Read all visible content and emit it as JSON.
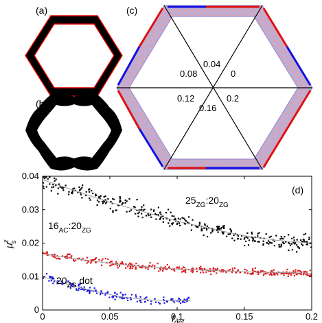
{
  "panels": {
    "a": {
      "label": "(a)"
    },
    "b": {
      "label": "(b)"
    },
    "c": {
      "label": "(c)",
      "sector_labels": [
        "0.04",
        "0",
        "0.2",
        "0.16",
        "0.12",
        "0.08"
      ]
    },
    "d": {
      "label": "(d)"
    }
  },
  "colors": {
    "ring_fill": "#000000",
    "ring_outline": "#e00000",
    "flake_fill": "#b8b0dc",
    "edge_red": "#e01010",
    "edge_blue": "#1010e0",
    "series_black": "#000000",
    "series_red": "#e01a1a",
    "series_blue": "#1a1ae0"
  },
  "chart_data": {
    "type": "scatter",
    "xlabel": "f",
    "xlabel_sub": "def",
    "ylabel": "μ",
    "ylabel_sup": "z",
    "ylabel_sub": "s",
    "xlim": [
      0,
      0.2
    ],
    "ylim": [
      0,
      0.04
    ],
    "xticks": [
      "0",
      "0.05",
      "0.1",
      "0.15",
      "0.2"
    ],
    "yticks": [
      "0",
      "0.01",
      "0.02",
      "0.03",
      "0.04"
    ],
    "series": [
      {
        "name_main": "25",
        "name_sub1": "ZG",
        "name_mid": ":20",
        "name_sub2": "ZG",
        "color": "#000000",
        "x_range": [
          0,
          0.2
        ],
        "fit": [
          [
            0,
            0.039
          ],
          [
            0.025,
            0.0355
          ],
          [
            0.05,
            0.0322
          ],
          [
            0.075,
            0.0294
          ],
          [
            0.1,
            0.0266
          ],
          [
            0.125,
            0.0243
          ],
          [
            0.15,
            0.0222
          ],
          [
            0.175,
            0.0208
          ],
          [
            0.2,
            0.02
          ]
        ],
        "scatter_sd": 0.0023
      },
      {
        "name_main": "16",
        "name_sub1": "AC",
        "name_mid": ":20",
        "name_sub2": "ZG",
        "color": "#e01a1a",
        "x_range": [
          0,
          0.2
        ],
        "fit": [
          [
            0,
            0.0168
          ],
          [
            0.03,
            0.015
          ],
          [
            0.06,
            0.0135
          ],
          [
            0.1,
            0.0122
          ],
          [
            0.15,
            0.0114
          ],
          [
            0.2,
            0.011
          ]
        ],
        "scatter_sd": 0.001
      },
      {
        "name_main": "20",
        "name_sub1": "ZG",
        "name_mid": " dot",
        "name_sub2": "",
        "color": "#1a1ae0",
        "x_range": [
          0,
          0.11
        ],
        "fit": [
          [
            0,
            0.01
          ],
          [
            0.02,
            0.0075
          ],
          [
            0.04,
            0.0055
          ],
          [
            0.06,
            0.0038
          ],
          [
            0.08,
            0.003
          ],
          [
            0.1,
            0.0028
          ],
          [
            0.11,
            0.0028
          ]
        ],
        "scatter_sd": 0.001
      }
    ]
  }
}
